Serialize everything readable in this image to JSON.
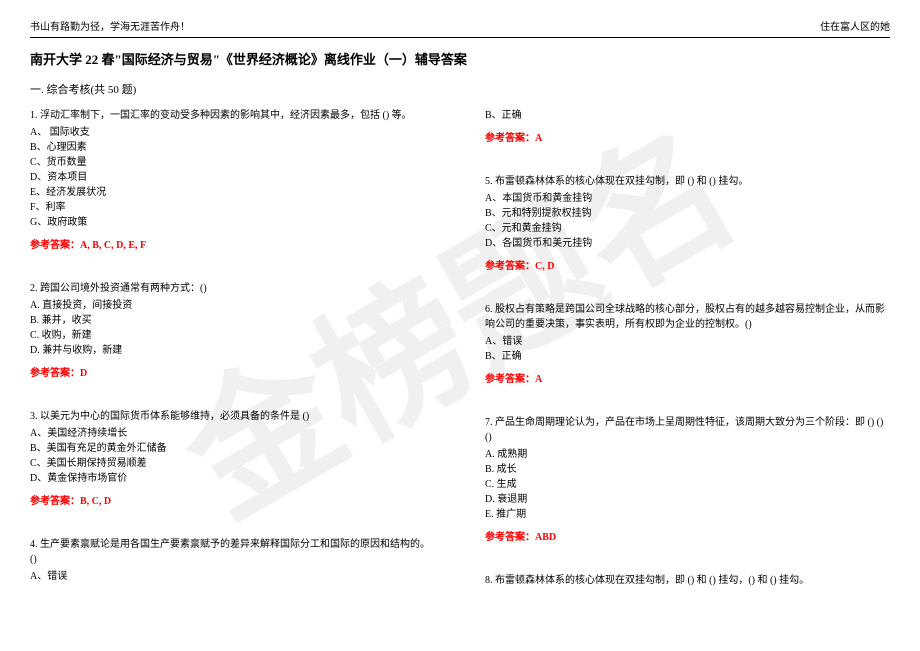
{
  "watermark": "金榜题名",
  "header": {
    "left": "书山有路勤为径，学海无涯苦作舟！",
    "right": "住在富人区的她"
  },
  "title": "南开大学 22 春\"国际经济与贸易\"《世界经济概论》离线作业（一）辅导答案",
  "section_title": "一. 综合考核(共 50 题)",
  "answer_label_prefix": "参考答案：",
  "colors": {
    "answer": "#ff0000",
    "text": "#000000",
    "background": "#ffffff"
  },
  "left_col": {
    "q1": {
      "stem": "1. 浮动汇率制下，一国汇率的变动受多种因素的影响其中，经济因素最多，包括 () 等。",
      "opts": [
        "A、 国际收支",
        "B、心理因素",
        "C、货币数量",
        "D、资本项目",
        "E、经济发展状况",
        "F、利率",
        "G、政府政策"
      ],
      "answer": "A, B, C, D, E, F"
    },
    "q2": {
      "stem": "2. 跨国公司境外投资通常有两种方式：()",
      "opts": [
        "A. 直接投资，间接投资",
        "B. 兼并，收买",
        "C. 收购，新建",
        "D. 兼并与收购，新建"
      ],
      "answer": "D"
    },
    "q3": {
      "stem": "3. 以美元为中心的国际货币体系能够维持，必须具备的条件是 ()",
      "opts": [
        "A、美国经济持续增长",
        "B、美国有充足的黄金外汇储备",
        "C、美国长期保持贸易顺差",
        "D、黄金保持市场官价"
      ],
      "answer": "B, C, D"
    },
    "q4": {
      "stem": "4. 生产要素禀赋论是用各国生产要素禀赋予的差异来解释国际分工和国际的原因和结构的。()",
      "opts": [
        "A、错误"
      ],
      "answer": ""
    }
  },
  "right_col": {
    "q4b": {
      "opts": [
        "B、正确"
      ],
      "answer": "A"
    },
    "q5": {
      "stem": "5. 布雷顿森林体系的核心体现在双挂勾制，即 () 和 () 挂勾。",
      "opts": [
        "A、本国货币和黄金挂钩",
        "B、元和特别提款权挂钩",
        "C、元和黄金挂钩",
        "D、各国货币和美元挂钩"
      ],
      "answer": "C, D"
    },
    "q6": {
      "stem": "6. 股权占有策略是跨国公司全球战略的核心部分，股权占有的越多越容易控制企业，从而影响公司的重要决策，事实表明，所有权即为企业的控制权。()",
      "opts": [
        "A、错误",
        "B、正确"
      ],
      "answer": "A"
    },
    "q7": {
      "stem": "7. 产品生命周期理论认为，产品在市场上呈周期性特征，该周期大致分为三个阶段：即 () () ()",
      "opts": [
        "A. 成熟期",
        "B. 成长",
        "C. 生成",
        "D. 衰退期",
        "E. 推广期"
      ],
      "answer": "ABD"
    },
    "q8": {
      "stem": "8. 布雷顿森林体系的核心体现在双挂勾制，即 () 和 () 挂勾，() 和 () 挂勾。",
      "opts": [],
      "answer": ""
    }
  }
}
